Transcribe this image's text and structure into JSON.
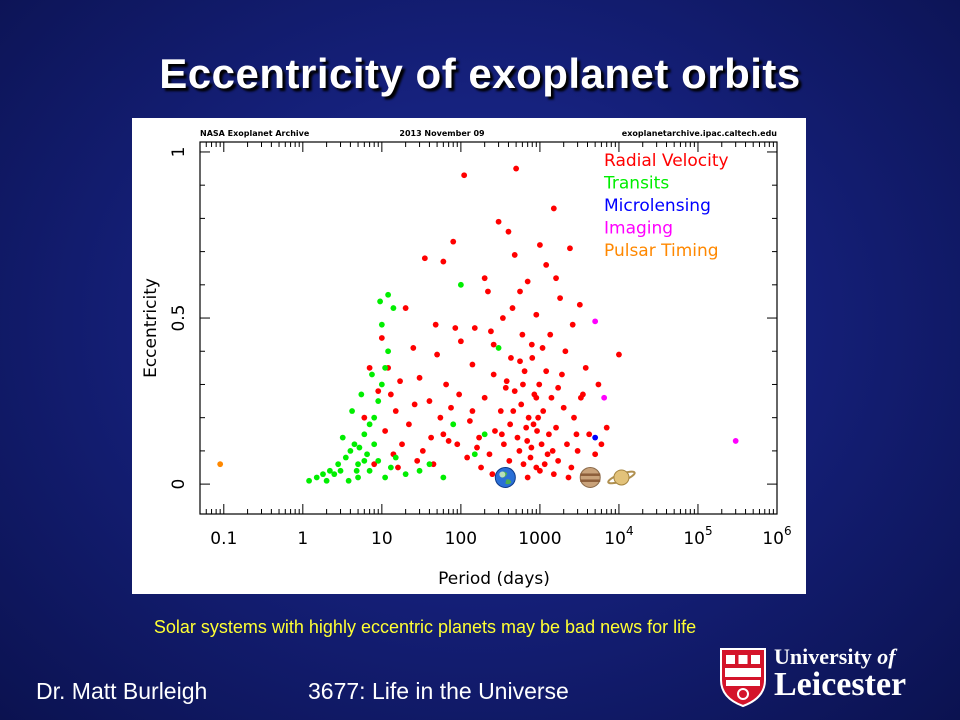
{
  "slide": {
    "title": "Eccentricity of exoplanet orbits",
    "caption": "Solar systems with highly eccentric planets may be bad news for life",
    "footer_author": "Dr. Matt Burleigh",
    "footer_course": "3677: Life in the Universe",
    "logo_line1_prefix": "University",
    "logo_line1_suffix": "of",
    "logo_line2": "Leicester"
  },
  "chart_data": {
    "type": "scatter",
    "header_left": "NASA Exoplanet Archive",
    "header_center": "2013 November 09",
    "header_right": "exoplanetarchive.ipac.caltech.edu",
    "xlabel": "Period (days)",
    "ylabel": "Eccentricity",
    "x_scale": "log",
    "xlim": [
      0.05,
      1000000
    ],
    "ylim": [
      0,
      1
    ],
    "x_ticks": [
      {
        "value": 0.1,
        "label": "0.1"
      },
      {
        "value": 1,
        "label": "1"
      },
      {
        "value": 10,
        "label": "10"
      },
      {
        "value": 100,
        "label": "100"
      },
      {
        "value": 1000,
        "label": "1000"
      },
      {
        "value": 10000,
        "base": "10",
        "exp": "4"
      },
      {
        "value": 100000,
        "base": "10",
        "exp": "5"
      },
      {
        "value": 1000000,
        "base": "10",
        "exp": "6"
      }
    ],
    "y_ticks": [
      {
        "value": 0,
        "label": "0"
      },
      {
        "value": 0.5,
        "label": "0.5"
      },
      {
        "value": 1,
        "label": "1"
      }
    ],
    "grid": false,
    "legend_position": "top-right",
    "series": [
      {
        "name": "Radial Velocity",
        "color": "#ff0000",
        "points": [
          [
            110,
            0.93
          ],
          [
            500,
            0.95
          ],
          [
            1000,
            0.72
          ],
          [
            1500,
            0.83
          ],
          [
            400,
            0.76
          ],
          [
            300,
            0.79
          ],
          [
            200,
            0.62
          ],
          [
            80,
            0.73
          ],
          [
            1200,
            0.66
          ],
          [
            700,
            0.61
          ],
          [
            2400,
            0.71
          ],
          [
            3200,
            0.54
          ],
          [
            220,
            0.58
          ],
          [
            60,
            0.67
          ],
          [
            35,
            0.68
          ],
          [
            20,
            0.53
          ],
          [
            900,
            0.51
          ],
          [
            1800,
            0.56
          ],
          [
            450,
            0.53
          ],
          [
            600,
            0.45
          ],
          [
            150,
            0.47
          ],
          [
            100,
            0.43
          ],
          [
            800,
            0.38
          ],
          [
            50,
            0.39
          ],
          [
            25,
            0.41
          ],
          [
            12,
            0.35
          ],
          [
            9,
            0.28
          ],
          [
            15,
            0.22
          ],
          [
            22,
            0.18
          ],
          [
            30,
            0.32
          ],
          [
            40,
            0.25
          ],
          [
            60,
            0.15
          ],
          [
            90,
            0.12
          ],
          [
            120,
            0.08
          ],
          [
            180,
            0.05
          ],
          [
            250,
            0.03
          ],
          [
            320,
            0.22
          ],
          [
            380,
            0.31
          ],
          [
            420,
            0.18
          ],
          [
            480,
            0.28
          ],
          [
            520,
            0.14
          ],
          [
            580,
            0.24
          ],
          [
            640,
            0.34
          ],
          [
            720,
            0.2
          ],
          [
            780,
            0.11
          ],
          [
            850,
            0.27
          ],
          [
            920,
            0.16
          ],
          [
            980,
            0.3
          ],
          [
            1100,
            0.22
          ],
          [
            1250,
            0.09
          ],
          [
            1400,
            0.26
          ],
          [
            1600,
            0.17
          ],
          [
            1900,
            0.33
          ],
          [
            2200,
            0.12
          ],
          [
            2700,
            0.2
          ],
          [
            3500,
            0.27
          ],
          [
            4200,
            0.15
          ],
          [
            5000,
            0.09
          ],
          [
            6000,
            0.12
          ],
          [
            7000,
            0.17
          ],
          [
            10000,
            0.39
          ],
          [
            14,
            0.09
          ],
          [
            18,
            0.12
          ],
          [
            28,
            0.07
          ],
          [
            45,
            0.06
          ],
          [
            70,
            0.13
          ],
          [
            6,
            0.2
          ],
          [
            8,
            0.06
          ],
          [
            11,
            0.16
          ],
          [
            13,
            0.27
          ],
          [
            16,
            0.05
          ],
          [
            33,
            0.1
          ],
          [
            55,
            0.2
          ],
          [
            75,
            0.23
          ],
          [
            130,
            0.19
          ],
          [
            170,
            0.14
          ],
          [
            230,
            0.09
          ],
          [
            270,
            0.16
          ],
          [
            350,
            0.12
          ],
          [
            410,
            0.07
          ],
          [
            460,
            0.22
          ],
          [
            550,
            0.1
          ],
          [
            620,
            0.06
          ],
          [
            690,
            0.13
          ],
          [
            760,
            0.08
          ],
          [
            830,
            0.18
          ],
          [
            900,
            0.05
          ],
          [
            1050,
            0.12
          ],
          [
            1150,
            0.06
          ],
          [
            1300,
            0.15
          ],
          [
            1450,
            0.1
          ],
          [
            1700,
            0.07
          ],
          [
            2000,
            0.23
          ],
          [
            2500,
            0.05
          ],
          [
            3000,
            0.1
          ],
          [
            140,
            0.36
          ],
          [
            260,
            0.42
          ],
          [
            340,
            0.5
          ],
          [
            560,
            0.58
          ],
          [
            1350,
            0.45
          ],
          [
            2100,
            0.4
          ],
          [
            3800,
            0.35
          ],
          [
            65,
            0.3
          ],
          [
            42,
            0.14
          ],
          [
            26,
            0.24
          ],
          [
            17,
            0.31
          ],
          [
            200,
            0.26
          ],
          [
            300,
            0.03
          ],
          [
            700,
            0.02
          ],
          [
            1000,
            0.04
          ],
          [
            1500,
            0.03
          ],
          [
            2300,
            0.02
          ],
          [
            4500,
            0.04
          ],
          [
            85,
            0.47
          ],
          [
            7,
            0.35
          ],
          [
            10,
            0.44
          ],
          [
            1600,
            0.62
          ],
          [
            2600,
            0.48
          ],
          [
            3300,
            0.26
          ],
          [
            5500,
            0.3
          ],
          [
            480,
            0.69
          ],
          [
            260,
            0.33
          ],
          [
            370,
            0.29
          ],
          [
            900,
            0.26
          ],
          [
            1200,
            0.34
          ],
          [
            670,
            0.17
          ],
          [
            160,
            0.11
          ],
          [
            950,
            0.2
          ],
          [
            1700,
            0.29
          ],
          [
            2900,
            0.15
          ],
          [
            240,
            0.46
          ],
          [
            560,
            0.37
          ],
          [
            790,
            0.42
          ],
          [
            1080,
            0.41
          ],
          [
            430,
            0.38
          ],
          [
            610,
            0.3
          ],
          [
            330,
            0.15
          ],
          [
            140,
            0.22
          ],
          [
            95,
            0.27
          ],
          [
            48,
            0.48
          ]
        ]
      },
      {
        "name": "Transits",
        "color": "#00ee00",
        "points": [
          [
            1.2,
            0.01
          ],
          [
            1.5,
            0.02
          ],
          [
            2,
            0.01
          ],
          [
            2.5,
            0.03
          ],
          [
            3,
            0.04
          ],
          [
            3.5,
            0.08
          ],
          [
            4,
            0.1
          ],
          [
            4.5,
            0.12
          ],
          [
            5,
            0.06
          ],
          [
            6,
            0.15
          ],
          [
            7,
            0.18
          ],
          [
            8,
            0.2
          ],
          [
            9,
            0.25
          ],
          [
            10,
            0.3
          ],
          [
            11,
            0.35
          ],
          [
            12,
            0.4
          ],
          [
            9.5,
            0.55
          ],
          [
            12,
            0.57
          ],
          [
            14,
            0.53
          ],
          [
            10,
            0.48
          ],
          [
            7.5,
            0.33
          ],
          [
            5.5,
            0.27
          ],
          [
            4.2,
            0.22
          ],
          [
            3.2,
            0.14
          ],
          [
            2.8,
            0.06
          ],
          [
            2.2,
            0.04
          ],
          [
            1.8,
            0.03
          ],
          [
            6.5,
            0.09
          ],
          [
            7,
            0.04
          ],
          [
            8,
            0.12
          ],
          [
            9,
            0.07
          ],
          [
            11,
            0.02
          ],
          [
            13,
            0.05
          ],
          [
            15,
            0.08
          ],
          [
            20,
            0.03
          ],
          [
            30,
            0.04
          ],
          [
            40,
            0.06
          ],
          [
            60,
            0.02
          ],
          [
            80,
            0.18
          ],
          [
            100,
            0.6
          ],
          [
            150,
            0.09
          ],
          [
            200,
            0.15
          ],
          [
            300,
            0.41
          ],
          [
            5,
            0.02
          ],
          [
            3.8,
            0.01
          ],
          [
            4.8,
            0.04
          ],
          [
            5.2,
            0.11
          ],
          [
            6,
            0.07
          ]
        ]
      },
      {
        "name": "Microlensing",
        "color": "#0000ff",
        "points": [
          [
            5000,
            0.14
          ]
        ]
      },
      {
        "name": "Imaging",
        "color": "#ff00ff",
        "points": [
          [
            5000,
            0.49
          ],
          [
            6500,
            0.26
          ],
          [
            300000,
            0.13
          ]
        ]
      },
      {
        "name": "Pulsar Timing",
        "color": "#ff8800",
        "points": [
          [
            0.09,
            0.06
          ]
        ]
      }
    ],
    "annotations": {
      "solar_system_planets": [
        {
          "name": "earth-icon",
          "x": 365
        },
        {
          "name": "jupiter-icon",
          "x": 4330
        },
        {
          "name": "saturn-icon",
          "x": 10760
        }
      ]
    }
  }
}
